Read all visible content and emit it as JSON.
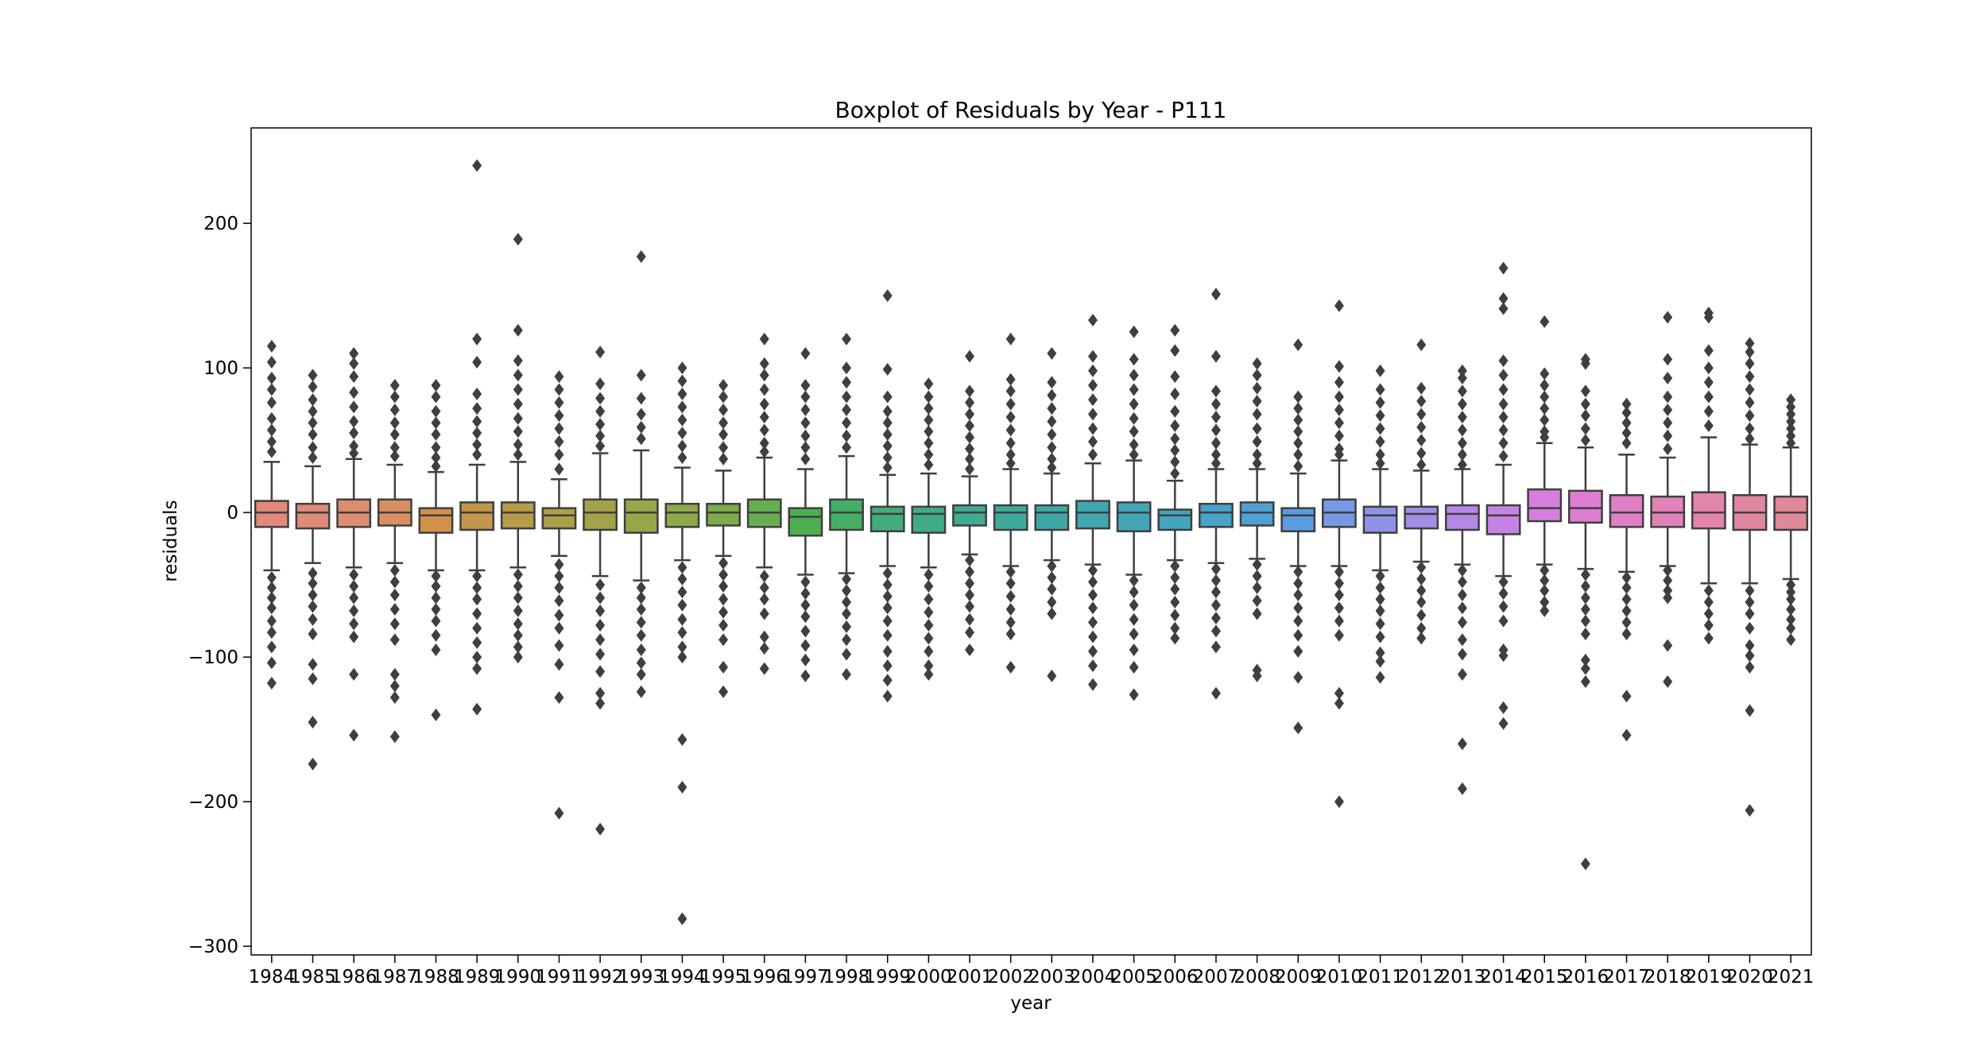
{
  "chart_data": {
    "type": "boxplot",
    "title": "Boxplot of Residuals by Year - P111",
    "xlabel": "year",
    "ylabel": "residuals",
    "ylim": [
      -306,
      266
    ],
    "yticks": [
      200,
      100,
      0,
      -100,
      -200,
      -300
    ],
    "ytick_labels": [
      "200",
      "100",
      "0",
      "−100",
      "−200",
      "−300"
    ],
    "grid": false,
    "legend": "none",
    "categories": [
      "1984",
      "1985",
      "1986",
      "1987",
      "1988",
      "1989",
      "1990",
      "1991",
      "1992",
      "1993",
      "1994",
      "1995",
      "1996",
      "1997",
      "1998",
      "1999",
      "2000",
      "2001",
      "2002",
      "2003",
      "2004",
      "2005",
      "2006",
      "2007",
      "2008",
      "2009",
      "2010",
      "2011",
      "2012",
      "2013",
      "2014",
      "2015",
      "2016",
      "2017",
      "2018",
      "2019",
      "2020",
      "2021"
    ],
    "colors": [
      "#e2897c",
      "#df8b7a",
      "#dc8d6f",
      "#d98f61",
      "#d2914a",
      "#c4964b",
      "#b79b4a",
      "#ab9f49",
      "#a2a24a",
      "#98a54a",
      "#8ea84b",
      "#7dab4d",
      "#67ae52",
      "#4daf4f",
      "#45ae66",
      "#43ac7b",
      "#41ab88",
      "#41aa93",
      "#40a99d",
      "#3fa8a5",
      "#40a7ae",
      "#42a6b7",
      "#44a4c0",
      "#48a2ca",
      "#51a0d4",
      "#5b9cdf",
      "#7798e4",
      "#8f93e5",
      "#a28ee6",
      "#b488e6",
      "#c683e3",
      "#d47fdc",
      "#dc7dd2",
      "#e07fc5",
      "#e282b8",
      "#e284ac",
      "#e087a0",
      "#df8996"
    ],
    "boxes": [
      {
        "q1": -10,
        "median": 0,
        "q3": 8,
        "whisker_low": -40,
        "whisker_high": 35,
        "outliers": [
          115,
          104,
          93,
          85,
          76,
          65,
          57,
          49,
          42,
          -45,
          -52,
          -59,
          -66,
          -75,
          -83,
          -93,
          -104,
          -118
        ]
      },
      {
        "q1": -11,
        "median": 0,
        "q3": 6,
        "whisker_low": -35,
        "whisker_high": 32,
        "outliers": [
          95,
          87,
          78,
          70,
          62,
          54,
          45,
          38,
          -42,
          -49,
          -57,
          -65,
          -74,
          -84,
          -105,
          -115,
          -145,
          -174
        ]
      },
      {
        "q1": -10,
        "median": 0,
        "q3": 9,
        "whisker_low": -38,
        "whisker_high": 37,
        "outliers": [
          110,
          103,
          94,
          83,
          73,
          63,
          55,
          46,
          41,
          -43,
          -51,
          -59,
          -68,
          -77,
          -86,
          -112,
          -154
        ]
      },
      {
        "q1": -9,
        "median": 0,
        "q3": 9,
        "whisker_low": -35,
        "whisker_high": 33,
        "outliers": [
          88,
          80,
          71,
          62,
          54,
          45,
          39,
          -40,
          -48,
          -57,
          -67,
          -77,
          -88,
          -112,
          -120,
          -128,
          -155
        ]
      },
      {
        "q1": -14,
        "median": -2,
        "q3": 3,
        "whisker_low": -40,
        "whisker_high": 28,
        "outliers": [
          88,
          80,
          70,
          62,
          54,
          45,
          38,
          32,
          -44,
          -51,
          -59,
          -67,
          -75,
          -85,
          -95,
          -140
        ]
      },
      {
        "q1": -12,
        "median": 0,
        "q3": 7,
        "whisker_low": -40,
        "whisker_high": 33,
        "outliers": [
          240,
          120,
          104,
          82,
          72,
          63,
          55,
          47,
          40,
          -44,
          -52,
          -60,
          -70,
          -80,
          -90,
          -100,
          -108,
          -136
        ]
      },
      {
        "q1": -11,
        "median": 0,
        "q3": 7,
        "whisker_low": -38,
        "whisker_high": 35,
        "outliers": [
          189,
          126,
          105,
          95,
          85,
          75,
          65,
          56,
          47,
          40,
          -43,
          -51,
          -59,
          -68,
          -77,
          -85,
          -93,
          -100
        ]
      },
      {
        "q1": -11,
        "median": -2,
        "q3": 3,
        "whisker_low": -30,
        "whisker_high": 23,
        "outliers": [
          94,
          85,
          76,
          67,
          58,
          49,
          40,
          30,
          -36,
          -44,
          -52,
          -61,
          -71,
          -80,
          -92,
          -105,
          -128,
          -208
        ]
      },
      {
        "q1": -12,
        "median": 0,
        "q3": 9,
        "whisker_low": -44,
        "whisker_high": 41,
        "outliers": [
          111,
          89,
          79,
          70,
          61,
          53,
          46,
          -50,
          -59,
          -68,
          -78,
          -88,
          -98,
          -110,
          -125,
          -132,
          -219
        ]
      },
      {
        "q1": -14,
        "median": 0,
        "q3": 9,
        "whisker_low": -47,
        "whisker_high": 43,
        "outliers": [
          177,
          95,
          79,
          68,
          59,
          51,
          -52,
          -59,
          -67,
          -76,
          -85,
          -95,
          -104,
          -112,
          -124
        ]
      },
      {
        "q1": -10,
        "median": 0,
        "q3": 6,
        "whisker_low": -33,
        "whisker_high": 31,
        "outliers": [
          100,
          91,
          82,
          73,
          64,
          55,
          46,
          38,
          -38,
          -46,
          -55,
          -64,
          -74,
          -83,
          -93,
          -100,
          -157,
          -190,
          -281
        ]
      },
      {
        "q1": -9,
        "median": 0,
        "q3": 6,
        "whisker_low": -30,
        "whisker_high": 29,
        "outliers": [
          88,
          80,
          71,
          62,
          54,
          45,
          37,
          -35,
          -43,
          -51,
          -60,
          -69,
          -78,
          -88,
          -107,
          -124
        ]
      },
      {
        "q1": -10,
        "median": 0,
        "q3": 9,
        "whisker_low": -38,
        "whisker_high": 38,
        "outliers": [
          120,
          103,
          95,
          85,
          75,
          66,
          57,
          48,
          42,
          -44,
          -52,
          -60,
          -70,
          -86,
          -94,
          -108
        ]
      },
      {
        "q1": -16,
        "median": -3,
        "q3": 3,
        "whisker_low": -43,
        "whisker_high": 30,
        "outliers": [
          110,
          88,
          80,
          71,
          62,
          53,
          45,
          37,
          -48,
          -56,
          -64,
          -72,
          -82,
          -92,
          -102,
          -113
        ]
      },
      {
        "q1": -12,
        "median": 0,
        "q3": 9,
        "whisker_low": -42,
        "whisker_high": 39,
        "outliers": [
          120,
          100,
          90,
          80,
          71,
          62,
          53,
          45,
          -46,
          -54,
          -62,
          -70,
          -79,
          -88,
          -98,
          -112
        ]
      },
      {
        "q1": -13,
        "median": -1,
        "q3": 4,
        "whisker_low": -37,
        "whisker_high": 26,
        "outliers": [
          150,
          99,
          80,
          70,
          62,
          54,
          46,
          38,
          31,
          -42,
          -50,
          -58,
          -66,
          -75,
          -85,
          -96,
          -106,
          -116,
          -127
        ]
      },
      {
        "q1": -14,
        "median": -1,
        "q3": 4,
        "whisker_low": -38,
        "whisker_high": 27,
        "outliers": [
          89,
          80,
          72,
          64,
          56,
          48,
          40,
          33,
          -43,
          -51,
          -60,
          -69,
          -78,
          -87,
          -96,
          -106,
          -112
        ]
      },
      {
        "q1": -9,
        "median": 0,
        "q3": 5,
        "whisker_low": -29,
        "whisker_high": 25,
        "outliers": [
          108,
          84,
          76,
          68,
          60,
          52,
          44,
          37,
          30,
          -33,
          -41,
          -49,
          -57,
          -65,
          -74,
          -83,
          -95
        ]
      },
      {
        "q1": -12,
        "median": 0,
        "q3": 5,
        "whisker_low": -37,
        "whisker_high": 30,
        "outliers": [
          120,
          92,
          84,
          75,
          66,
          57,
          48,
          40,
          34,
          -41,
          -49,
          -58,
          -67,
          -76,
          -84,
          -107
        ]
      },
      {
        "q1": -12,
        "median": 0,
        "q3": 5,
        "whisker_low": -33,
        "whisker_high": 27,
        "outliers": [
          110,
          90,
          81,
          72,
          63,
          54,
          45,
          37,
          31,
          -37,
          -45,
          -53,
          -62,
          -70,
          -113
        ]
      },
      {
        "q1": -11,
        "median": 0,
        "q3": 8,
        "whisker_low": -36,
        "whisker_high": 34,
        "outliers": [
          133,
          108,
          98,
          88,
          78,
          68,
          58,
          49,
          40,
          -40,
          -48,
          -57,
          -66,
          -76,
          -86,
          -96,
          -106,
          -119
        ]
      },
      {
        "q1": -13,
        "median": 0,
        "q3": 7,
        "whisker_low": -43,
        "whisker_high": 36,
        "outliers": [
          125,
          106,
          95,
          85,
          75,
          65,
          56,
          47,
          40,
          -47,
          -55,
          -64,
          -74,
          -84,
          -95,
          -107,
          -126
        ]
      },
      {
        "q1": -12,
        "median": -2,
        "q3": 2,
        "whisker_low": -33,
        "whisker_high": 22,
        "outliers": [
          126,
          112,
          94,
          82,
          70,
          60,
          51,
          43,
          35,
          27,
          -37,
          -45,
          -53,
          -62,
          -71,
          -80,
          -87
        ]
      },
      {
        "q1": -10,
        "median": 0,
        "q3": 6,
        "whisker_low": -35,
        "whisker_high": 30,
        "outliers": [
          151,
          108,
          84,
          75,
          66,
          57,
          48,
          40,
          34,
          -39,
          -47,
          -55,
          -64,
          -73,
          -82,
          -93,
          -125
        ]
      },
      {
        "q1": -9,
        "median": 0,
        "q3": 7,
        "whisker_low": -32,
        "whisker_high": 30,
        "outliers": [
          103,
          95,
          86,
          77,
          68,
          58,
          49,
          40,
          34,
          -36,
          -44,
          -52,
          -61,
          -70,
          -109,
          -113
        ]
      },
      {
        "q1": -13,
        "median": -2,
        "q3": 3,
        "whisker_low": -37,
        "whisker_high": 27,
        "outliers": [
          116,
          80,
          72,
          64,
          56,
          48,
          40,
          32,
          -41,
          -49,
          -57,
          -66,
          -75,
          -85,
          -96,
          -114,
          -149
        ]
      },
      {
        "q1": -10,
        "median": 0,
        "q3": 9,
        "whisker_low": -37,
        "whisker_high": 36,
        "outliers": [
          143,
          101,
          90,
          80,
          71,
          62,
          53,
          44,
          40,
          -41,
          -49,
          -57,
          -66,
          -75,
          -85,
          -125,
          -132,
          -200
        ]
      },
      {
        "q1": -14,
        "median": -2,
        "q3": 4,
        "whisker_low": -40,
        "whisker_high": 30,
        "outliers": [
          98,
          85,
          76,
          67,
          58,
          49,
          40,
          34,
          -44,
          -52,
          -60,
          -68,
          -77,
          -86,
          -97,
          -103,
          -114
        ]
      },
      {
        "q1": -11,
        "median": -1,
        "q3": 4,
        "whisker_low": -34,
        "whisker_high": 29,
        "outliers": [
          116,
          86,
          77,
          68,
          59,
          50,
          41,
          33,
          -38,
          -46,
          -54,
          -62,
          -71,
          -80,
          -87
        ]
      },
      {
        "q1": -12,
        "median": -1,
        "q3": 5,
        "whisker_low": -36,
        "whisker_high": 30,
        "outliers": [
          98,
          93,
          84,
          75,
          66,
          57,
          48,
          40,
          33,
          -40,
          -48,
          -57,
          -66,
          -76,
          -88,
          -98,
          -112,
          -160,
          -191
        ]
      },
      {
        "q1": -15,
        "median": -2,
        "q3": 5,
        "whisker_low": -44,
        "whisker_high": 33,
        "outliers": [
          169,
          148,
          141,
          105,
          95,
          85,
          75,
          66,
          57,
          48,
          39,
          -48,
          -56,
          -65,
          -75,
          -95,
          -99,
          -135,
          -146
        ]
      },
      {
        "q1": -6,
        "median": 3,
        "q3": 16,
        "whisker_low": -36,
        "whisker_high": 48,
        "outliers": [
          132,
          96,
          88,
          80,
          72,
          64,
          56,
          52,
          -40,
          -47,
          -54,
          -62,
          -68
        ]
      },
      {
        "q1": -7,
        "median": 3,
        "q3": 15,
        "whisker_low": -39,
        "whisker_high": 45,
        "outliers": [
          106,
          103,
          84,
          75,
          67,
          58,
          50,
          -43,
          -51,
          -59,
          -67,
          -75,
          -84,
          -102,
          -108,
          -117,
          -243
        ]
      },
      {
        "q1": -10,
        "median": 0,
        "q3": 12,
        "whisker_low": -41,
        "whisker_high": 40,
        "outliers": [
          75,
          69,
          62,
          55,
          48,
          -45,
          -52,
          -60,
          -68,
          -76,
          -84,
          -127,
          -154
        ]
      },
      {
        "q1": -10,
        "median": 0,
        "q3": 11,
        "whisker_low": -37,
        "whisker_high": 38,
        "outliers": [
          135,
          106,
          93,
          80,
          71,
          62,
          53,
          44,
          -40,
          -47,
          -54,
          -59,
          -92,
          -117
        ]
      },
      {
        "q1": -11,
        "median": 0,
        "q3": 14,
        "whisker_low": -49,
        "whisker_high": 52,
        "outliers": [
          138,
          135,
          112,
          100,
          90,
          80,
          70,
          60,
          -54,
          -62,
          -70,
          -78,
          -87
        ]
      },
      {
        "q1": -12,
        "median": 0,
        "q3": 12,
        "whisker_low": -49,
        "whisker_high": 47,
        "outliers": [
          117,
          111,
          103,
          94,
          85,
          76,
          67,
          58,
          51,
          -54,
          -62,
          -70,
          -80,
          -92,
          -99,
          -107,
          -137,
          -206
        ]
      },
      {
        "q1": -12,
        "median": 0,
        "q3": 11,
        "whisker_low": -46,
        "whisker_high": 45,
        "outliers": [
          78,
          73,
          68,
          63,
          58,
          53,
          48,
          -50,
          -55,
          -60,
          -67,
          -74,
          -80,
          -88
        ]
      }
    ]
  }
}
